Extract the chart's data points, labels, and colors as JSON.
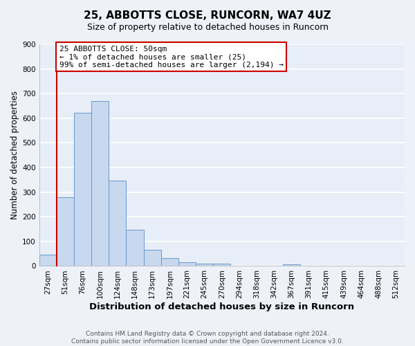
{
  "title": "25, ABBOTTS CLOSE, RUNCORN, WA7 4UZ",
  "subtitle": "Size of property relative to detached houses in Runcorn",
  "xlabel": "Distribution of detached houses by size in Runcorn",
  "ylabel": "Number of detached properties",
  "bar_labels": [
    "27sqm",
    "51sqm",
    "76sqm",
    "100sqm",
    "124sqm",
    "148sqm",
    "173sqm",
    "197sqm",
    "221sqm",
    "245sqm",
    "270sqm",
    "294sqm",
    "318sqm",
    "342sqm",
    "367sqm",
    "391sqm",
    "415sqm",
    "439sqm",
    "464sqm",
    "488sqm",
    "512sqm"
  ],
  "bar_values": [
    45,
    280,
    622,
    670,
    347,
    148,
    65,
    32,
    15,
    11,
    9,
    0,
    0,
    0,
    8,
    0,
    0,
    0,
    0,
    0,
    0
  ],
  "bar_color": "#c8d8ee",
  "bar_edge_color": "#6699cc",
  "highlight_color": "#cc0000",
  "ylim": [
    0,
    900
  ],
  "yticks": [
    0,
    100,
    200,
    300,
    400,
    500,
    600,
    700,
    800,
    900
  ],
  "annotation_title": "25 ABBOTTS CLOSE: 50sqm",
  "annotation_line1": "← 1% of detached houses are smaller (25)",
  "annotation_line2": "99% of semi-detached houses are larger (2,194) →",
  "footer1": "Contains HM Land Registry data © Crown copyright and database right 2024.",
  "footer2": "Contains public sector information licensed under the Open Government Licence v3.0.",
  "background_color": "#eef2f8",
  "grid_color": "#c8d4e8",
  "plot_bg_color": "#e8eef8",
  "title_fontsize": 11,
  "subtitle_fontsize": 9,
  "label_fontsize": 8.5,
  "tick_fontsize": 7.5,
  "footer_fontsize": 6.5,
  "annotation_fontsize": 8
}
